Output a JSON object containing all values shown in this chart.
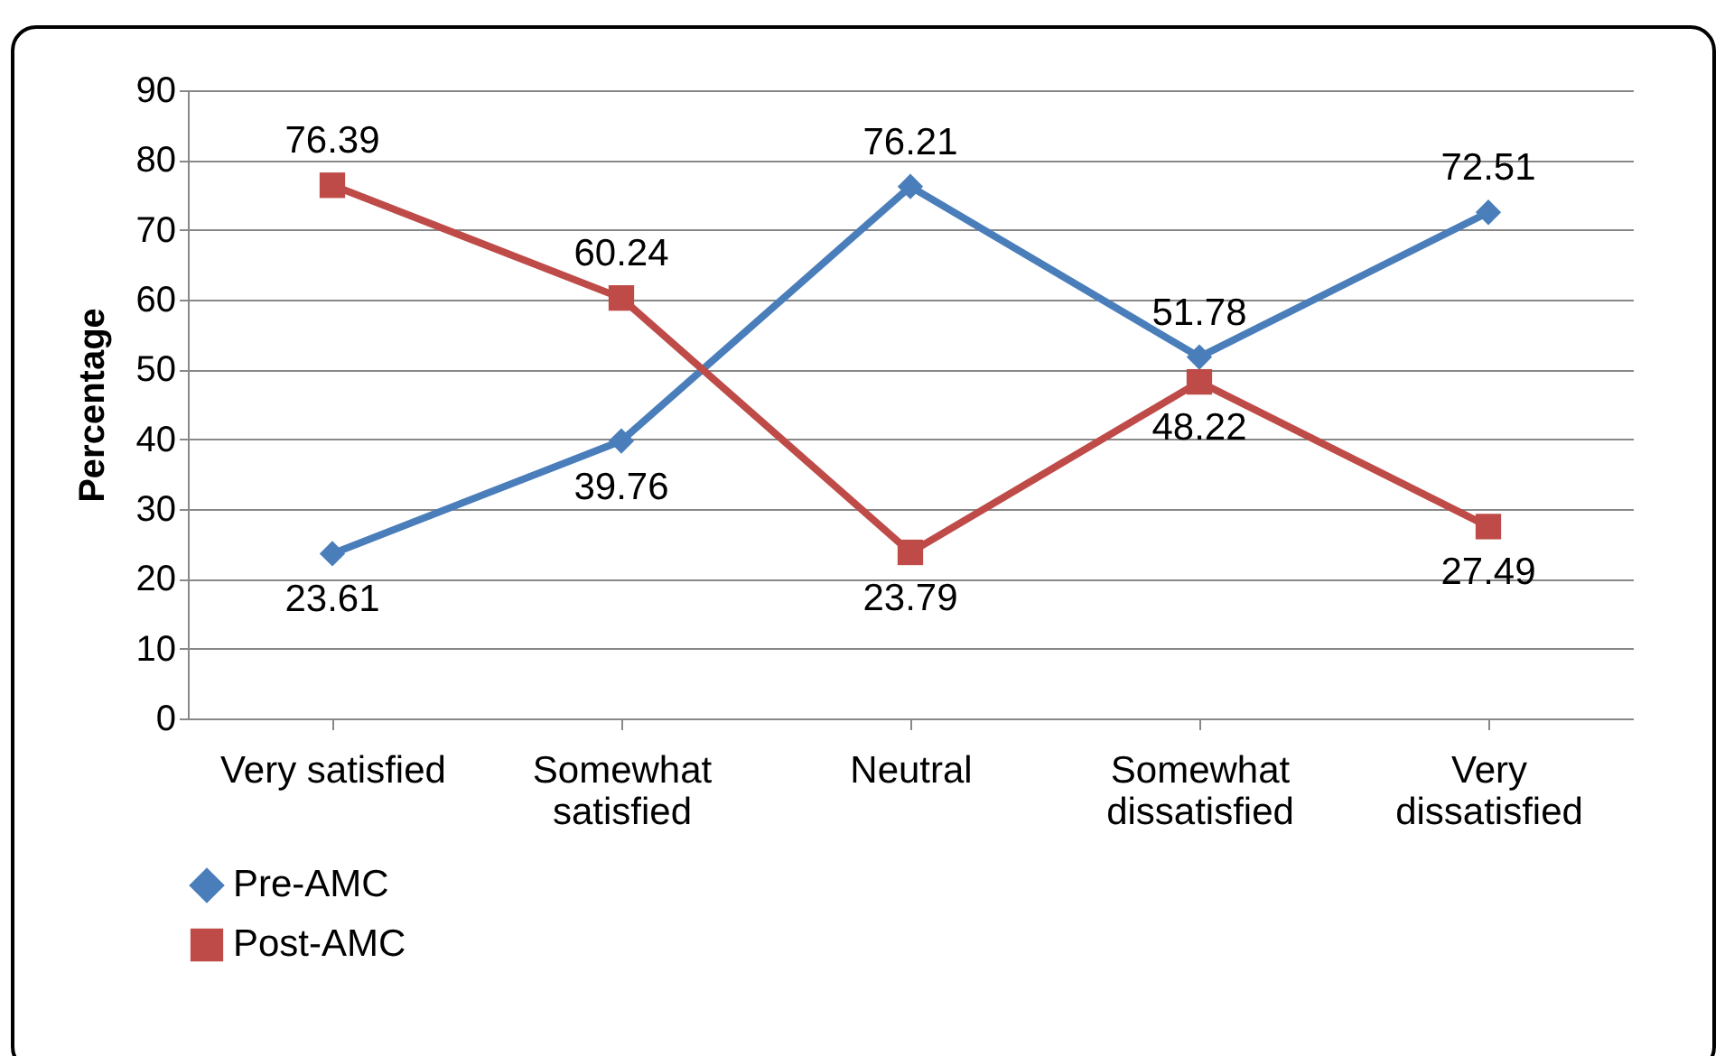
{
  "chart_data": {
    "type": "line",
    "ylabel": "Percentage",
    "categories": [
      "Very satisfied",
      "Somewhat satisfied",
      "Neutral",
      "Somewhat dissatisfied",
      "Very dissatisfied"
    ],
    "series": [
      {
        "name": "Pre-AMC",
        "color": "#4a7ebb",
        "marker": "diamond",
        "values": [
          23.61,
          39.76,
          76.21,
          51.78,
          72.51
        ]
      },
      {
        "name": "Post-AMC",
        "color": "#be4b48",
        "marker": "square",
        "values": [
          76.39,
          60.24,
          23.79,
          48.22,
          27.49
        ]
      }
    ],
    "ylim": [
      0,
      90
    ],
    "yticks": [
      0,
      10,
      20,
      30,
      40,
      50,
      60,
      70,
      80,
      90
    ],
    "grid": "y",
    "legend": "bottom left",
    "data_labels": true
  }
}
